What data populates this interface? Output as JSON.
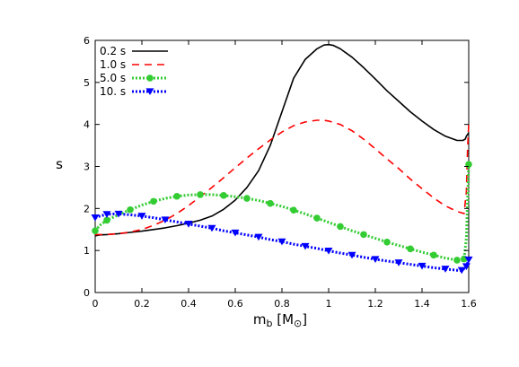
{
  "chart_data": {
    "type": "line",
    "title": "",
    "xlabel": "m_b [M_⊙]",
    "xlabel_main": "m",
    "xlabel_sub": "b",
    "xlabel_unit_open": " [M",
    "xlabel_unit_sub": "⊙",
    "xlabel_unit_close": "]",
    "ylabel": "s",
    "xlim": [
      0,
      1.6
    ],
    "ylim": [
      0,
      6
    ],
    "xticks": [
      0,
      0.2,
      0.4,
      0.6,
      0.8,
      1,
      1.2,
      1.4,
      1.6
    ],
    "xtick_labels": [
      "0",
      "0.2",
      "0.4",
      "0.6",
      "0.8",
      "1",
      "1.2",
      "1.4",
      "1.6"
    ],
    "yticks": [
      0,
      1,
      2,
      3,
      4,
      5,
      6
    ],
    "ytick_labels": [
      "0",
      "1",
      "2",
      "3",
      "4",
      "5",
      "6"
    ],
    "grid": false,
    "legend_position": "top-left",
    "series": [
      {
        "name": "0.2 s",
        "color": "#000000",
        "style": "solid",
        "marker": "none",
        "x": [
          0,
          0.02,
          0.05,
          0.1,
          0.15,
          0.2,
          0.25,
          0.3,
          0.35,
          0.4,
          0.45,
          0.5,
          0.55,
          0.6,
          0.65,
          0.7,
          0.75,
          0.8,
          0.85,
          0.9,
          0.95,
          0.98,
          1.0,
          1.02,
          1.05,
          1.1,
          1.15,
          1.2,
          1.25,
          1.3,
          1.35,
          1.4,
          1.45,
          1.5,
          1.55,
          1.575,
          1.585,
          1.59,
          1.6
        ],
        "y": [
          1.35,
          1.37,
          1.38,
          1.4,
          1.43,
          1.46,
          1.5,
          1.54,
          1.59,
          1.65,
          1.72,
          1.82,
          1.98,
          2.2,
          2.5,
          2.9,
          3.5,
          4.3,
          5.1,
          5.55,
          5.8,
          5.89,
          5.9,
          5.88,
          5.8,
          5.6,
          5.35,
          5.08,
          4.8,
          4.55,
          4.3,
          4.08,
          3.88,
          3.72,
          3.62,
          3.62,
          3.65,
          3.72,
          3.8
        ]
      },
      {
        "name": "1.0 s",
        "color": "#ff0000",
        "style": "dashed",
        "marker": "none",
        "x": [
          0,
          0.05,
          0.1,
          0.15,
          0.2,
          0.25,
          0.3,
          0.35,
          0.4,
          0.45,
          0.5,
          0.55,
          0.6,
          0.65,
          0.7,
          0.75,
          0.8,
          0.85,
          0.9,
          0.95,
          0.98,
          1.0,
          1.05,
          1.1,
          1.15,
          1.2,
          1.25,
          1.3,
          1.35,
          1.4,
          1.45,
          1.5,
          1.55,
          1.58,
          1.59,
          1.595,
          1.6
        ],
        "y": [
          1.38,
          1.38,
          1.4,
          1.44,
          1.5,
          1.6,
          1.72,
          1.88,
          2.07,
          2.28,
          2.5,
          2.73,
          2.97,
          3.2,
          3.42,
          3.63,
          3.82,
          3.97,
          4.06,
          4.1,
          4.1,
          4.08,
          4.0,
          3.85,
          3.65,
          3.42,
          3.18,
          2.95,
          2.7,
          2.47,
          2.25,
          2.06,
          1.93,
          1.88,
          2.4,
          3.4,
          4.0
        ]
      },
      {
        "name": "5.0 s",
        "color": "#33cc33",
        "style": "dotted",
        "marker": "circle",
        "x": [
          0,
          0.02,
          0.05,
          0.1,
          0.15,
          0.2,
          0.25,
          0.3,
          0.35,
          0.4,
          0.45,
          0.5,
          0.55,
          0.6,
          0.65,
          0.7,
          0.75,
          0.8,
          0.85,
          0.9,
          0.95,
          1.0,
          1.05,
          1.1,
          1.15,
          1.2,
          1.25,
          1.3,
          1.35,
          1.4,
          1.45,
          1.5,
          1.55,
          1.57,
          1.58,
          1.59,
          1.6
        ],
        "y": [
          1.47,
          1.6,
          1.72,
          1.85,
          1.97,
          2.08,
          2.17,
          2.24,
          2.29,
          2.32,
          2.33,
          2.33,
          2.31,
          2.28,
          2.24,
          2.19,
          2.12,
          2.05,
          1.96,
          1.87,
          1.77,
          1.67,
          1.57,
          1.47,
          1.38,
          1.29,
          1.2,
          1.12,
          1.04,
          0.96,
          0.89,
          0.82,
          0.77,
          0.76,
          0.8,
          1.3,
          3.05
        ]
      },
      {
        "name": "10. s",
        "color": "#0000ff",
        "style": "dotted",
        "marker": "triangle-down",
        "x": [
          0,
          0.02,
          0.05,
          0.08,
          0.1,
          0.15,
          0.2,
          0.25,
          0.3,
          0.35,
          0.4,
          0.45,
          0.5,
          0.55,
          0.6,
          0.65,
          0.7,
          0.75,
          0.8,
          0.85,
          0.9,
          0.95,
          1.0,
          1.05,
          1.1,
          1.15,
          1.2,
          1.25,
          1.3,
          1.35,
          1.4,
          1.45,
          1.5,
          1.55,
          1.57,
          1.58,
          1.59,
          1.6
        ],
        "y": [
          1.78,
          1.82,
          1.86,
          1.87,
          1.87,
          1.85,
          1.82,
          1.78,
          1.73,
          1.68,
          1.63,
          1.58,
          1.53,
          1.47,
          1.42,
          1.37,
          1.32,
          1.26,
          1.21,
          1.15,
          1.1,
          1.05,
          0.99,
          0.94,
          0.89,
          0.84,
          0.79,
          0.75,
          0.71,
          0.67,
          0.63,
          0.59,
          0.56,
          0.53,
          0.53,
          0.57,
          0.62,
          0.78
        ]
      }
    ]
  }
}
